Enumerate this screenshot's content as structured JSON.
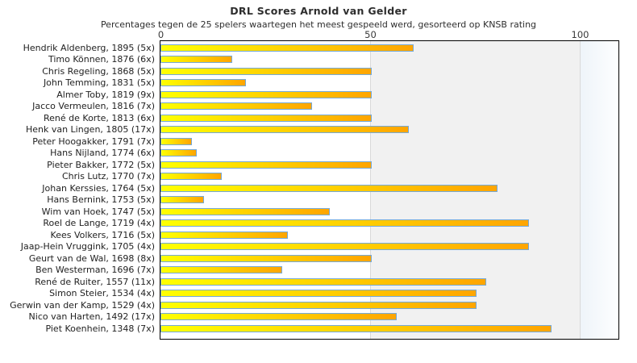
{
  "chart_data": {
    "type": "bar",
    "orientation": "horizontal",
    "title": "DRL Scores Arnold van Gelder",
    "subtitle": "Percentages tegen de 25 spelers waartegen het meest gespeeld werd, gesorteerd op KNSB rating",
    "xlabel": "",
    "ylabel": "",
    "xlim": [
      0,
      109.6
    ],
    "x_ticks": [
      0,
      50,
      100
    ],
    "gridlines_at": [
      50,
      100
    ],
    "legend": "none",
    "categories": [
      "Hendrik Aldenberg, 1895 (5x)",
      "Timo Können, 1876 (6x)",
      "Chris Regeling, 1868 (5x)",
      "John Temming, 1831 (5x)",
      "Almer Toby, 1819 (9x)",
      "Jacco Vermeulen, 1816 (7x)",
      "René de Korte, 1813 (6x)",
      "Henk van Lingen, 1805 (17x)",
      "Peter Hoogakker, 1791 (7x)",
      "Hans Nijland, 1774 (6x)",
      "Pieter Bakker, 1772 (5x)",
      "Chris Lutz, 1770 (7x)",
      "Johan Kerssies, 1764 (5x)",
      "Hans Bernink, 1753 (5x)",
      "Wim van Hoek, 1747 (5x)",
      "Roel de Lange, 1719 (4x)",
      "Kees Volkers, 1716 (5x)",
      "Jaap-Hein Vruggink, 1705 (4x)",
      "Geurt van de Wal, 1698 (8x)",
      "Ben Westerman, 1696 (7x)",
      "René de Ruiter, 1557 (11x)",
      "Simon Steier, 1534 (4x)",
      "Gerwin van der Kamp, 1529 (4x)",
      "Nico van Harten, 1492 (17x)",
      "Piet Koenhein, 1348 (7x)"
    ],
    "values": [
      60,
      16.7,
      50,
      20,
      50,
      35.7,
      50,
      58.8,
      7.1,
      8.3,
      50,
      14.3,
      80,
      10,
      40,
      87.5,
      30,
      87.5,
      50,
      28.6,
      77.3,
      75,
      75,
      55.9,
      92.9
    ],
    "colors": {
      "bar_gradient_start": "#ffff00",
      "bar_gradient_end": "#ffa500",
      "bar_border": "#74a9d8",
      "band_0_50": "#ffffff",
      "band_50_100": "#f1f1f1",
      "band_over_100_start": "#eef4f9",
      "band_over_100_end": "#fdfeff",
      "gridline": "#d9d9d9",
      "plot_border": "#000000"
    }
  }
}
